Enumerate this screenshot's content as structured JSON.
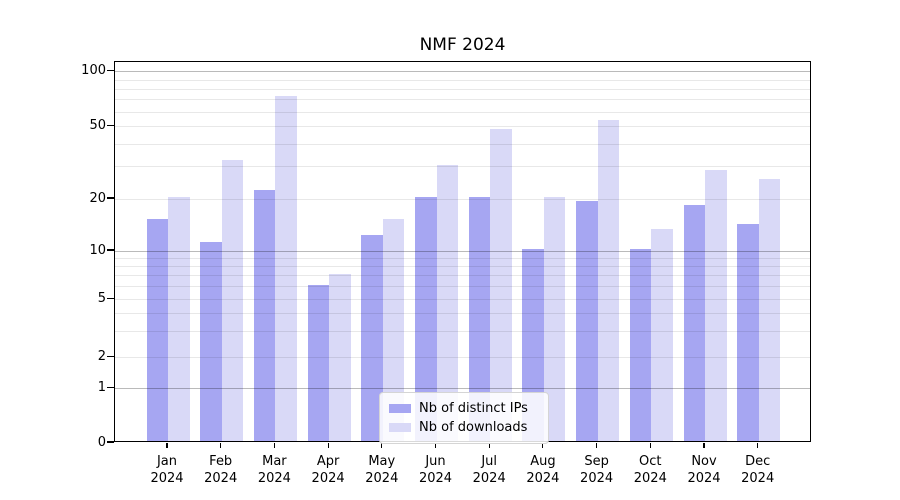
{
  "title": "NMF 2024",
  "chart_data": {
    "type": "bar",
    "title": "NMF 2024",
    "categories": [
      "Jan 2024",
      "Feb 2024",
      "Mar 2024",
      "Apr 2024",
      "May 2024",
      "Jun 2024",
      "Jul 2024",
      "Aug 2024",
      "Sep 2024",
      "Oct 2024",
      "Nov 2024",
      "Dec 2024"
    ],
    "x_tick_month_line": [
      "Jan",
      "Feb",
      "Mar",
      "Apr",
      "May",
      "Jun",
      "Jul",
      "Aug",
      "Sep",
      "Oct",
      "Nov",
      "Dec"
    ],
    "x_tick_year_line": "2024",
    "series": [
      {
        "name": "Nb of distinct IPs",
        "color": "#a6a6f2",
        "values": [
          15,
          11,
          22,
          6,
          12,
          20,
          20,
          10,
          19,
          10,
          18,
          14
        ]
      },
      {
        "name": "Nb of downloads",
        "color": "#d9d9f7",
        "values": [
          20,
          32,
          72,
          7,
          15,
          30,
          47,
          20,
          53,
          13,
          28,
          25
        ]
      }
    ],
    "xlabel": "",
    "ylabel": "",
    "yscale": "symlog (linear 0-1, logarithmic above)",
    "ylim": [
      0,
      113
    ],
    "yticks": [
      0,
      1,
      2,
      5,
      10,
      20,
      50,
      100
    ],
    "major_gridline_values": [
      1,
      10,
      100
    ],
    "minor_gridline_values": [
      2,
      3,
      4,
      5,
      6,
      7,
      8,
      9,
      20,
      30,
      40,
      50,
      60,
      70,
      80,
      90
    ],
    "grid": "on (drawn over bars)",
    "legend_position": "lower center, inside axes"
  }
}
